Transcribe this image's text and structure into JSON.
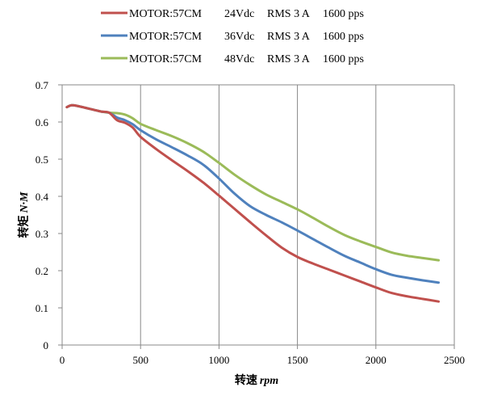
{
  "chart_data": {
    "type": "line",
    "xlabel": "转速 rpm",
    "xlabel_parts": {
      "cn": "转速",
      "unit": "rpm"
    },
    "ylabel": "转矩 N·M",
    "ylabel_parts": {
      "cn": "转矩",
      "unit": "N·M"
    },
    "xlim": [
      0,
      2500
    ],
    "ylim": [
      0,
      0.7
    ],
    "xticks": [
      0,
      500,
      1000,
      1500,
      2000,
      2500
    ],
    "yticks": [
      0,
      0.1,
      0.2,
      0.3,
      0.4,
      0.5,
      0.6,
      0.7
    ],
    "grid": "vertical",
    "legend_position": "top",
    "series": [
      {
        "name": "MOTOR:57CM",
        "voltage": "24Vdc",
        "current": "RMS 3 A",
        "pps": "1600 pps",
        "color": "#c0504d",
        "x": [
          30,
          60,
          100,
          150,
          200,
          250,
          300,
          350,
          400,
          450,
          500,
          600,
          700,
          800,
          900,
          1000,
          1100,
          1200,
          1300,
          1400,
          1500,
          1600,
          1700,
          1800,
          1900,
          2000,
          2100,
          2200,
          2300,
          2400
        ],
        "values": [
          0.64,
          0.645,
          0.643,
          0.638,
          0.633,
          0.628,
          0.625,
          0.605,
          0.598,
          0.585,
          0.56,
          0.527,
          0.497,
          0.468,
          0.437,
          0.402,
          0.366,
          0.33,
          0.295,
          0.262,
          0.237,
          0.219,
          0.203,
          0.187,
          0.171,
          0.155,
          0.14,
          0.131,
          0.124,
          0.117
        ]
      },
      {
        "name": "MOTOR:57CM",
        "voltage": "36Vdc",
        "current": "RMS 3 A",
        "pps": "1600 pps",
        "color": "#4f81bd",
        "x": [
          30,
          60,
          100,
          150,
          200,
          250,
          300,
          350,
          400,
          450,
          500,
          600,
          700,
          800,
          900,
          1000,
          1100,
          1200,
          1300,
          1400,
          1500,
          1600,
          1700,
          1800,
          1900,
          2000,
          2100,
          2200,
          2300,
          2400
        ],
        "values": [
          0.64,
          0.645,
          0.643,
          0.638,
          0.633,
          0.628,
          0.625,
          0.612,
          0.605,
          0.594,
          0.578,
          0.553,
          0.532,
          0.51,
          0.485,
          0.448,
          0.407,
          0.373,
          0.35,
          0.33,
          0.308,
          0.285,
          0.262,
          0.24,
          0.222,
          0.204,
          0.189,
          0.181,
          0.174,
          0.168
        ]
      },
      {
        "name": "MOTOR:57CM",
        "voltage": "48Vdc",
        "current": "RMS 3 A",
        "pps": "1600 pps",
        "color": "#9bbb59",
        "x": [
          30,
          60,
          100,
          150,
          200,
          250,
          300,
          350,
          400,
          450,
          500,
          600,
          700,
          800,
          900,
          1000,
          1100,
          1200,
          1300,
          1400,
          1500,
          1600,
          1700,
          1800,
          1900,
          2000,
          2100,
          2200,
          2300,
          2400
        ],
        "values": [
          0.64,
          0.645,
          0.643,
          0.638,
          0.633,
          0.628,
          0.625,
          0.624,
          0.62,
          0.61,
          0.595,
          0.578,
          0.562,
          0.543,
          0.52,
          0.49,
          0.458,
          0.43,
          0.405,
          0.385,
          0.365,
          0.342,
          0.318,
          0.296,
          0.279,
          0.264,
          0.249,
          0.24,
          0.234,
          0.228
        ]
      }
    ]
  }
}
